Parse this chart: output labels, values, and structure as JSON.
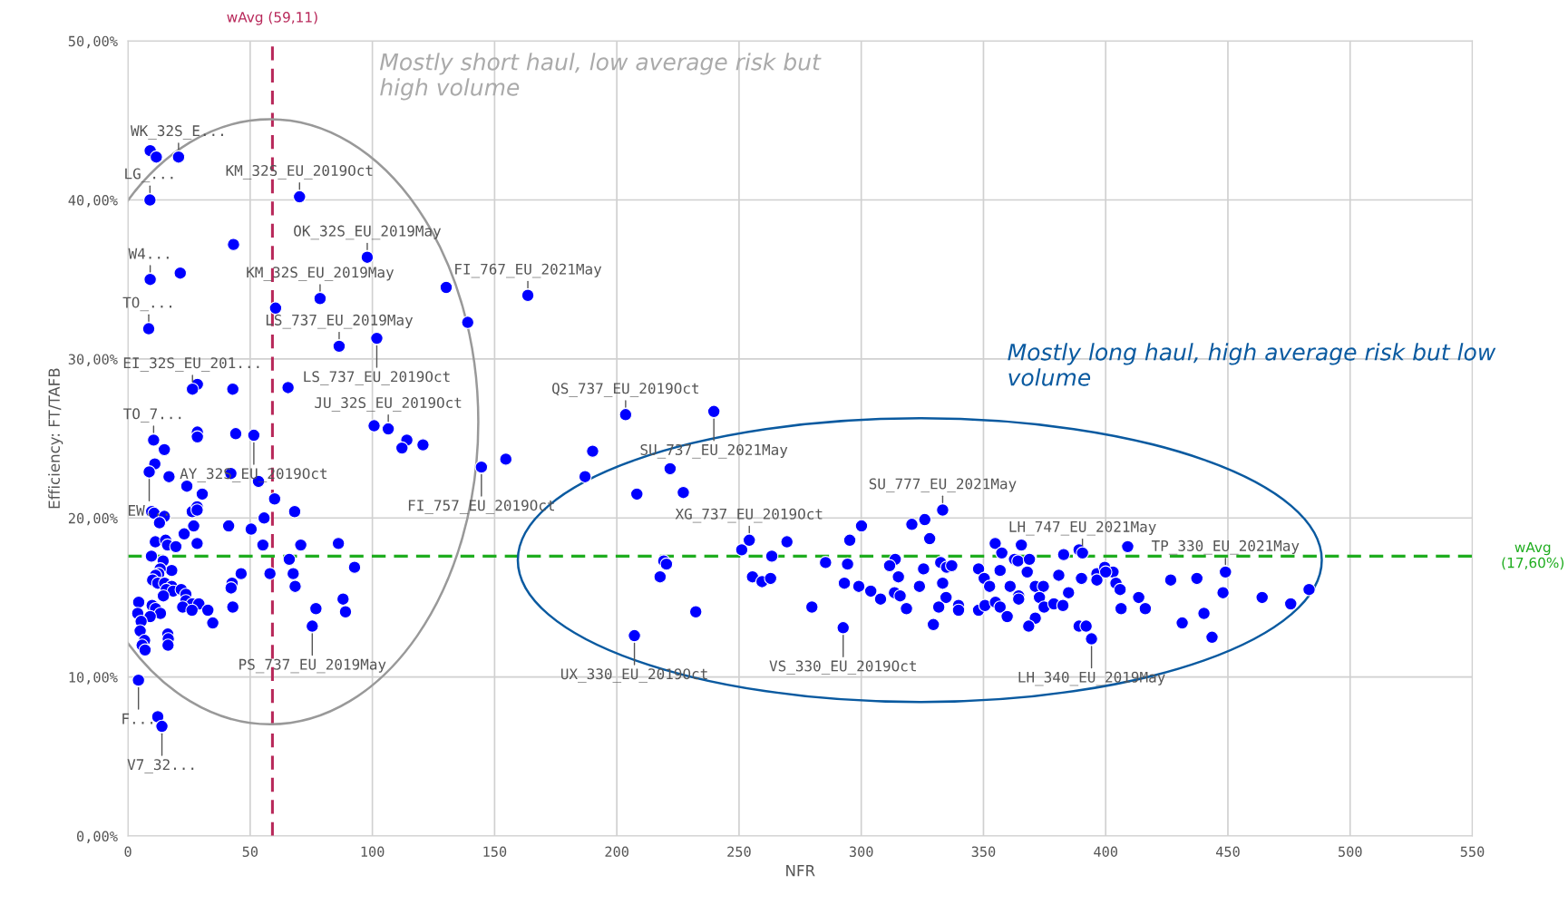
{
  "chart_data": {
    "type": "scatter",
    "xlabel": "NFR",
    "ylabel": "Efficiency: FT/TAFB",
    "xlim": [
      0,
      550
    ],
    "xticks": [
      0,
      50,
      100,
      150,
      200,
      250,
      300,
      350,
      400,
      450,
      500,
      550
    ],
    "ylim": [
      0,
      50
    ],
    "yticks": [
      {
        "value": 0,
        "label": "0,00%"
      },
      {
        "value": 10,
        "label": "10,00%"
      },
      {
        "value": 20,
        "label": "20,00%"
      },
      {
        "value": 30,
        "label": "30,00%"
      },
      {
        "value": 40,
        "label": "40,00%"
      },
      {
        "value": 50,
        "label": "50,00%"
      }
    ],
    "grid": true,
    "marker": "circle",
    "series": [
      {
        "color": "#0000ff",
        "x": [
          9.1,
          11.6,
          20.7,
          9,
          70.2,
          43.2,
          97.9,
          9.1,
          21.4,
          78.6,
          60.4,
          130.2,
          139,
          8.5,
          86.4,
          101.8,
          28.4,
          26.4,
          42.9,
          65.5,
          100.7,
          106.5,
          114.1,
          112.1,
          120.7,
          144.6,
          154.6,
          163.6,
          10.5,
          14.9,
          28.4,
          28.4,
          44.1,
          51.5,
          11,
          8.7,
          16.8,
          24.1,
          30.4,
          42.1,
          53.4,
          60,
          68.2,
          9.7,
          10.7,
          14.9,
          12.9,
          26.3,
          28.3,
          28.3,
          26.9,
          23,
          41.2,
          50.4,
          55.7,
          11.2,
          15.4,
          16.2,
          19.6,
          28.3,
          55.2,
          70.7,
          86.1,
          9.6,
          14.4,
          17.9,
          13.2,
          12.6,
          11.3,
          10.1,
          12.2,
          15,
          17.9,
          15.7,
          18.5,
          14.5,
          21.8,
          23.7,
          23.7,
          26.3,
          29,
          22.4,
          26.2,
          32.7,
          34.7,
          46.3,
          42.6,
          42.2,
          42.9,
          58.1,
          66,
          67.6,
          68.4,
          92.7,
          88,
          89,
          76.9,
          75.4,
          4.4,
          4,
          9.9,
          11.3,
          13.3,
          9.1,
          5.4,
          5,
          16.3,
          16.5,
          16.4,
          6.8,
          5.8,
          7,
          4.3,
          12.2,
          13.9,
          203.6,
          239.7,
          190.1,
          187,
          221.8,
          208.2,
          227.2,
          219.2,
          220.3,
          217.7,
          232.3,
          207.2,
          251.1,
          254.2,
          269.6,
          263.4,
          255.5,
          259.4,
          262.9,
          279.8,
          285.4,
          294.4,
          295.3,
          300.1,
          293.1,
          299,
          303.9,
          307.9,
          292.6,
          320.7,
          326,
          333.3,
          328,
          313.9,
          311.6,
          315.2,
          325.5,
          332.5,
          334.9,
          337,
          333.3,
          323.8,
          313.6,
          315.9,
          318.5,
          334.7,
          331.7,
          339.8,
          339.8,
          329.5,
          348,
          350.3,
          352.5,
          348,
          350.6,
          354.8,
          365.5,
          357.5,
          362.7,
          364.1,
          368.8,
          382.8,
          389.1,
          390.5,
          409,
          356.8,
          367.9,
          360.9,
          371.2,
          374.5,
          364.4,
          364.4,
          372.9,
          380.8,
          384.8,
          354.9,
          356.8,
          359.7,
          374.8,
          378.8,
          382.5,
          371.2,
          368.5,
          390.1,
          396.4,
          396.4,
          399.6,
          403,
          400,
          404.2,
          405.9,
          406.3,
          413.5,
          416.2,
          389.1,
          392,
          394.2,
          426.6,
          437.3,
          449,
          448,
          431.3,
          440.2,
          443.5,
          464,
          475.7,
          483.2
        ],
        "values": [
          43.1,
          42.7,
          42.7,
          40,
          40.2,
          37.2,
          36.4,
          35,
          35.4,
          33.8,
          33.2,
          34.5,
          32.3,
          31.9,
          30.8,
          31.3,
          28.4,
          28.1,
          28.1,
          28.2,
          25.8,
          25.6,
          24.9,
          24.4,
          24.6,
          23.2,
          23.7,
          34,
          24.9,
          24.3,
          25.4,
          25.1,
          25.3,
          25.2,
          23.4,
          22.9,
          22.6,
          22,
          21.5,
          22.8,
          22.3,
          21.2,
          20.4,
          20.4,
          20.3,
          20.1,
          19.7,
          20.4,
          20.7,
          20.5,
          19.5,
          19,
          19.5,
          19.3,
          20,
          18.5,
          18.6,
          18.3,
          18.2,
          18.4,
          18.3,
          18.3,
          18.4,
          17.6,
          17.3,
          16.7,
          16.8,
          16.5,
          16.4,
          16.1,
          15.9,
          15.9,
          15.7,
          15.5,
          15.4,
          15.1,
          15.5,
          15.2,
          14.8,
          14.6,
          14.6,
          14.4,
          14.2,
          14.2,
          13.4,
          16.5,
          15.9,
          15.6,
          14.4,
          16.5,
          17.4,
          16.5,
          15.7,
          16.9,
          14.9,
          14.1,
          14.3,
          13.2,
          14.7,
          14,
          14.5,
          14.3,
          14,
          13.8,
          13.5,
          12.9,
          12.7,
          12.4,
          12,
          12.3,
          12,
          11.7,
          9.8,
          7.5,
          6.9,
          26.5,
          26.7,
          24.2,
          22.6,
          23.1,
          21.5,
          21.6,
          17.3,
          17.1,
          16.3,
          14.1,
          12.6,
          18,
          18.6,
          18.5,
          17.6,
          16.3,
          16,
          16.2,
          14.4,
          17.2,
          17.1,
          18.6,
          19.5,
          15.9,
          15.7,
          15.4,
          14.9,
          13.1,
          19.6,
          19.9,
          20.5,
          18.7,
          17.4,
          17,
          16.3,
          16.8,
          17.2,
          16.9,
          17,
          15.9,
          15.7,
          15.3,
          15.1,
          14.3,
          15,
          14.4,
          14.5,
          14.2,
          13.3,
          16.8,
          16.2,
          15.7,
          14.2,
          14.5,
          18.4,
          18.3,
          17.8,
          17.4,
          17.3,
          17.4,
          17.7,
          18,
          17.8,
          18.2,
          16.7,
          16.6,
          15.7,
          15.7,
          15.7,
          15.1,
          14.9,
          15,
          16.4,
          15.3,
          14.7,
          14.4,
          13.8,
          14.4,
          14.6,
          14.5,
          13.7,
          13.2,
          16.2,
          16.5,
          16.1,
          16.9,
          16.6,
          16.6,
          15.9,
          15.5,
          14.3,
          15,
          14.3,
          13.2,
          13.2,
          12.4,
          16.1,
          16.2,
          16.6,
          15.3,
          13.4,
          14,
          12.5,
          15,
          14.6,
          15.5
        ]
      }
    ],
    "ref_lines": [
      {
        "axis": "x",
        "value": 59.11,
        "label": "wAvg (59,11)",
        "color": "#b8285a",
        "line_style": "dashed"
      },
      {
        "axis": "y",
        "value": 17.6,
        "label": "wAvg\n(17,60%)",
        "color": "#1fad1f",
        "line_style": "dashed"
      }
    ],
    "annotations": [
      "Mostly short haul, low average risk but high volume",
      "Mostly long haul, high average risk but low volume",
      {
        "text": "WK_32S_E...",
        "x": 20.7,
        "y": 42.7
      },
      {
        "text": "LG_...",
        "x": 9,
        "y": 40
      },
      {
        "text": "KM_32S_EU_2019Oct",
        "x": 70.2,
        "y": 40.2
      },
      {
        "text": "OK_32S_EU_2019May",
        "x": 97.9,
        "y": 36.4
      },
      {
        "text": "W4...",
        "x": 9.1,
        "y": 35
      },
      {
        "text": "KM_32S_EU_2019May",
        "x": 78.6,
        "y": 33.8
      },
      {
        "text": "FI_767_EU_2021May",
        "x": 163.6,
        "y": 34
      },
      {
        "text": "TO_...",
        "x": 8.5,
        "y": 31.9
      },
      {
        "text": "LS_737_EU_2019May",
        "x": 86.4,
        "y": 30.8
      },
      {
        "text": "LS_737_EU_2019Oct",
        "x": 101.8,
        "y": 31.3
      },
      {
        "text": "EI_32S_EU_201...",
        "x": 26.4,
        "y": 28.1
      },
      {
        "text": "QS_737_EU_2019Oct",
        "x": 203.6,
        "y": 26.5
      },
      {
        "text": "JU_32S_EU_2019Oct",
        "x": 106.5,
        "y": 25.6
      },
      {
        "text": "TO_7...",
        "x": 10.5,
        "y": 24.9
      },
      {
        "text": "SU_737_EU_2021May",
        "x": 239.7,
        "y": 26.7
      },
      {
        "text": "AY_32S_EU_2019Oct",
        "x": 51.5,
        "y": 25.2
      },
      {
        "text": "FI_757_EU_2019Oct",
        "x": 144.6,
        "y": 23.2
      },
      {
        "text": "EW...",
        "x": 8.7,
        "y": 22.9
      },
      {
        "text": "SU_777_EU_2021May",
        "x": 333.3,
        "y": 20.5
      },
      {
        "text": "XG_737_EU_2019Oct",
        "x": 254.2,
        "y": 18.6
      },
      {
        "text": "LH_747_EU_2021May",
        "x": 390.5,
        "y": 17.8
      },
      {
        "text": "TP_330_EU_2021May",
        "x": 449,
        "y": 16.6
      },
      {
        "text": "PS_737_EU_2019May",
        "x": 75.4,
        "y": 13.2
      },
      {
        "text": "UX_330_EU_2019Oct",
        "x": 207.2,
        "y": 12.6
      },
      {
        "text": "VS_330_EU_2019Oct",
        "x": 292.6,
        "y": 13.1
      },
      {
        "text": "LH_340_EU_2019May",
        "x": 394.2,
        "y": 12.4
      },
      {
        "text": "F...",
        "x": 4.3,
        "y": 9.8
      },
      {
        "text": "V7_32...",
        "x": 13.9,
        "y": 6.9
      }
    ]
  }
}
